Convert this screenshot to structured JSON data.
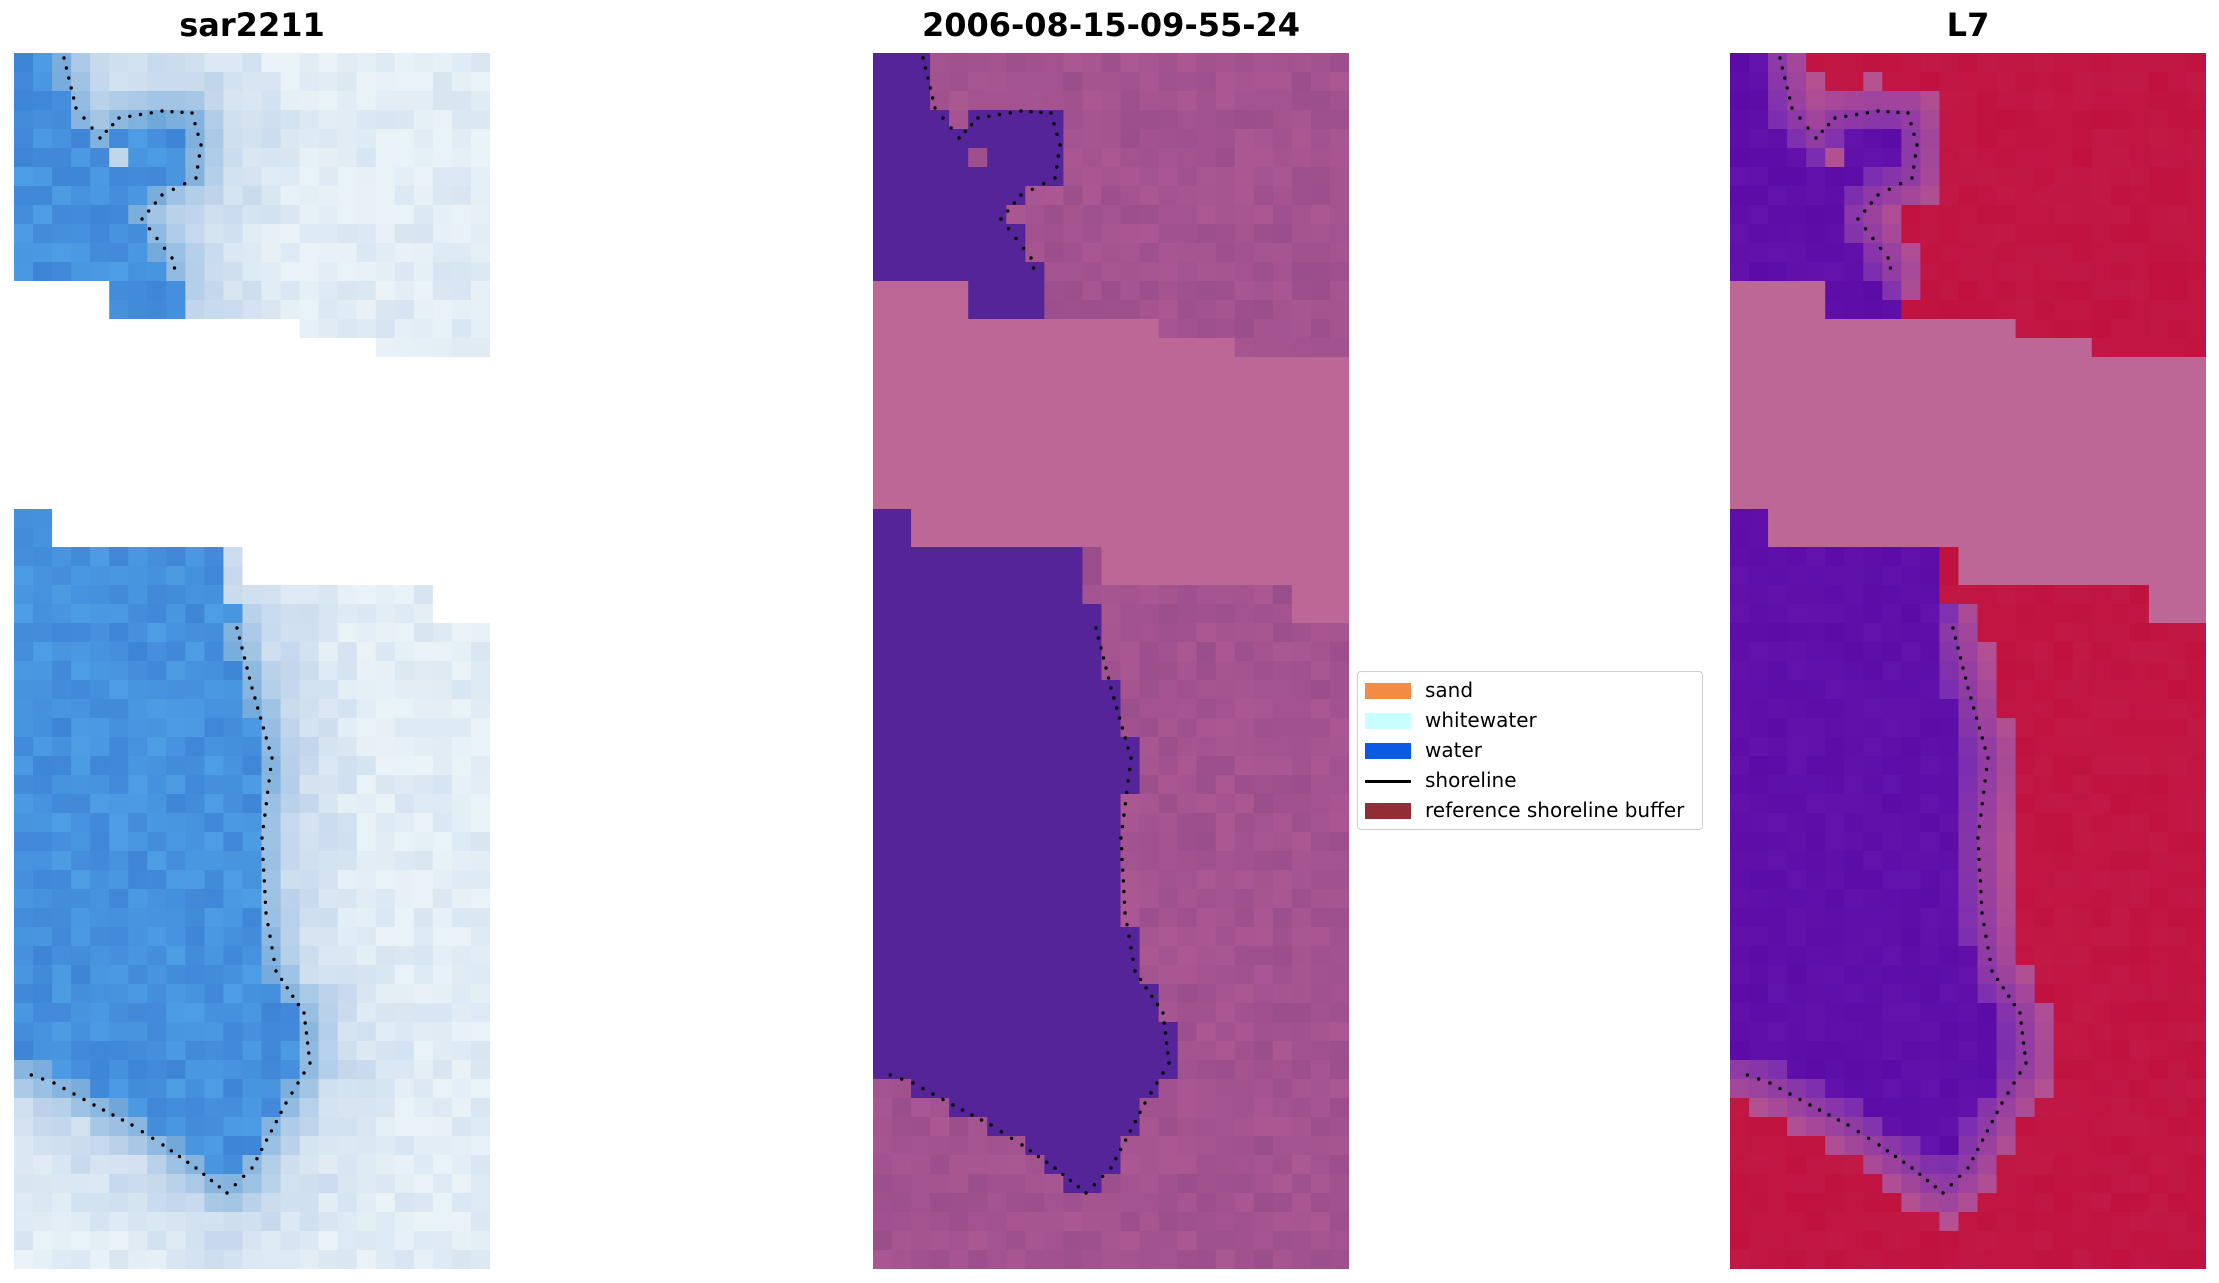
{
  "panels": [
    {
      "id": "rgb",
      "title": "sar2211"
    },
    {
      "id": "classified",
      "title": "2006-08-15-09-55-24"
    },
    {
      "id": "mndwi",
      "title": "L7"
    }
  ],
  "legend": {
    "items": [
      {
        "label": "sand",
        "color": "#f28c45",
        "kind": "patch"
      },
      {
        "label": "whitewater",
        "color": "#c8ffff",
        "kind": "patch"
      },
      {
        "label": "water",
        "color": "#0a5ae6",
        "kind": "patch"
      },
      {
        "label": "shoreline",
        "color": "#000000",
        "kind": "line"
      },
      {
        "label": "reference shoreline buffer",
        "color": "#912e35",
        "kind": "patch"
      }
    ]
  },
  "colors": {
    "nodata_rgb": "#ffffff",
    "water_class": "#542498",
    "no_data_mask": "#bd6796",
    "land_class": "#9b4e8c",
    "mndwi_positive": "#5c0ba7",
    "mndwi_negative": "#c1123f",
    "shoreline_dots": "#000000"
  }
}
